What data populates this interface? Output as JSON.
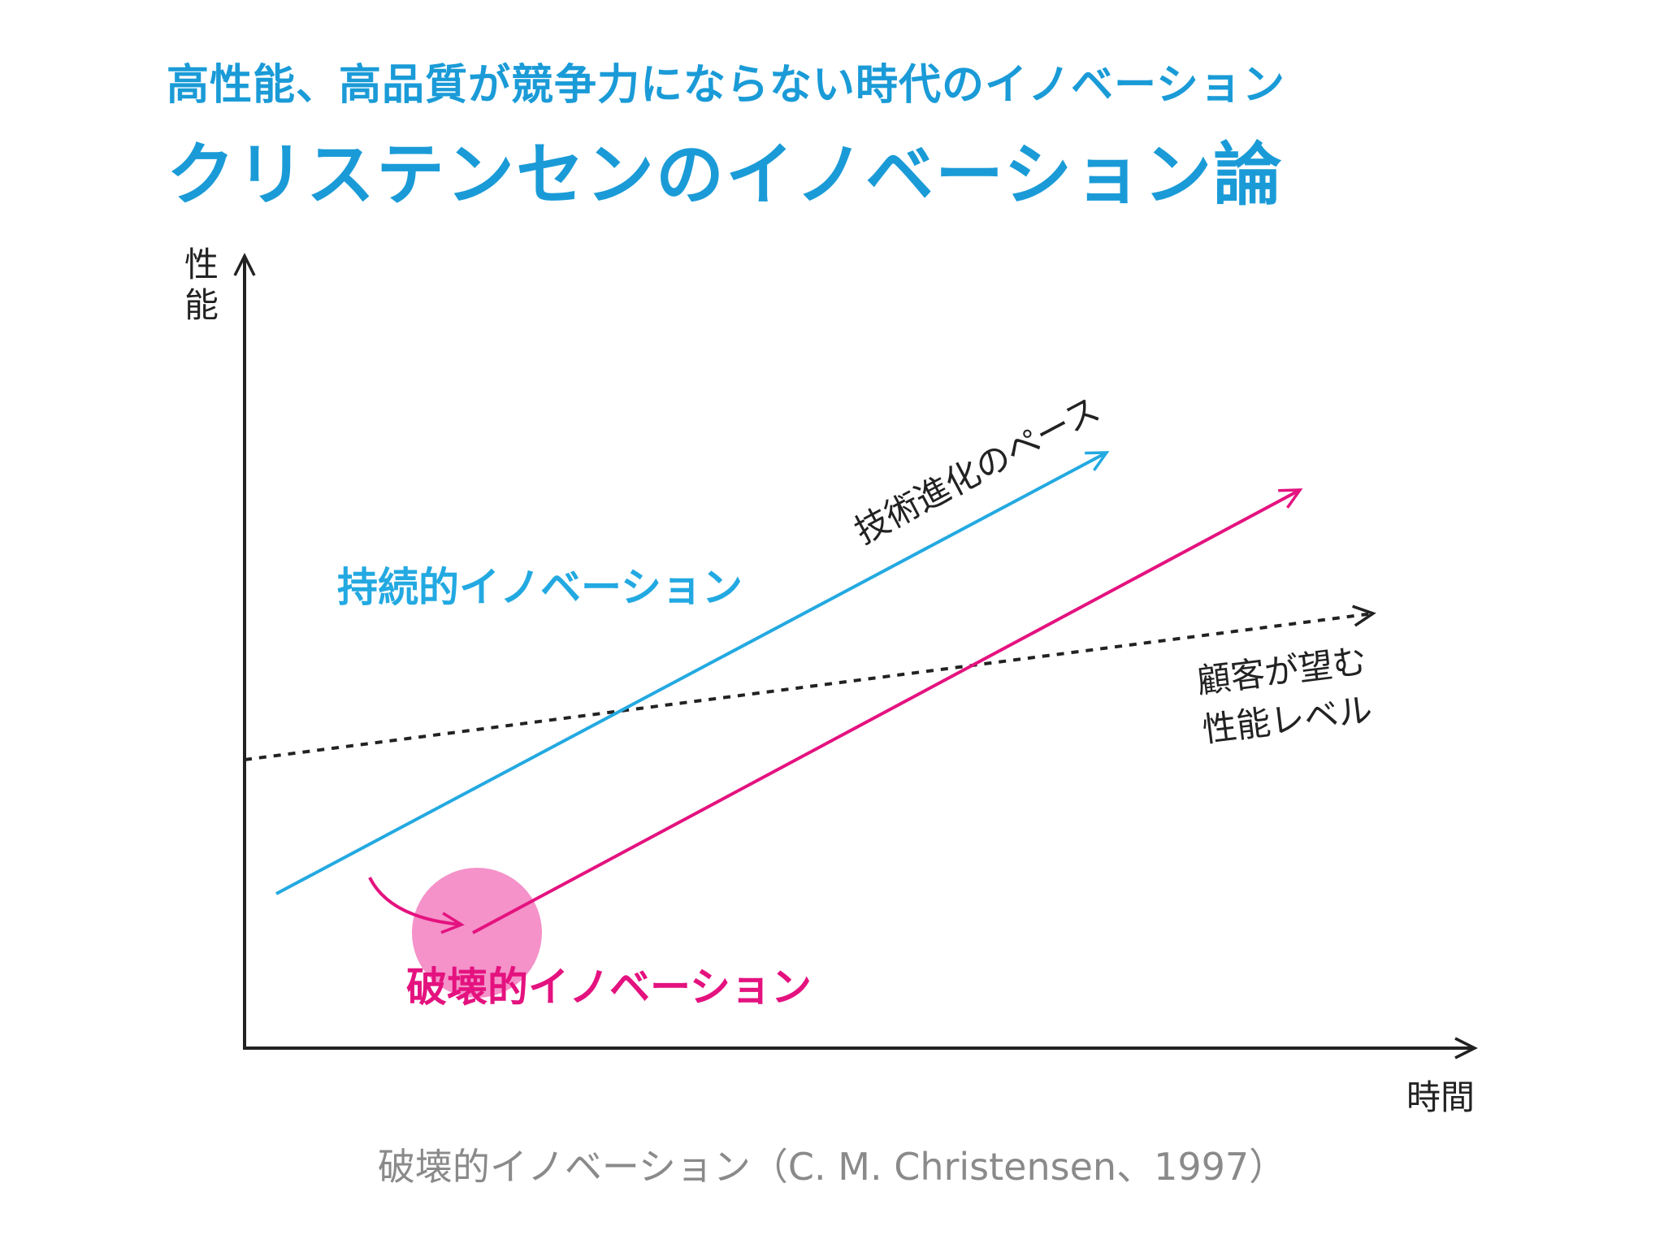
{
  "header": {
    "subtitle": "高性能、高品質が競争力にならない時代のイノベーション",
    "title": "クリステンセンのイノベーション論"
  },
  "diagram": {
    "y_axis_label": [
      "性",
      "能"
    ],
    "x_axis_label": "時間",
    "tech_pace_label": "技術進化のペース",
    "customer_label_line1": "顧客が望む",
    "customer_label_line2": "性能レベル",
    "sustaining_label": "持続的イノベーション",
    "disruptive_label": "破壊的イノベーション"
  },
  "caption": "破壊的イノベーション（C. M. Christensen、1997）",
  "colors": {
    "accent_blue": "#1a9bd7",
    "sustaining_line": "#23a9e1",
    "disruptive": "#e4127f",
    "disruptive_blob": "#f27fc0",
    "axis": "#222222",
    "caption": "#8a8a8a"
  }
}
